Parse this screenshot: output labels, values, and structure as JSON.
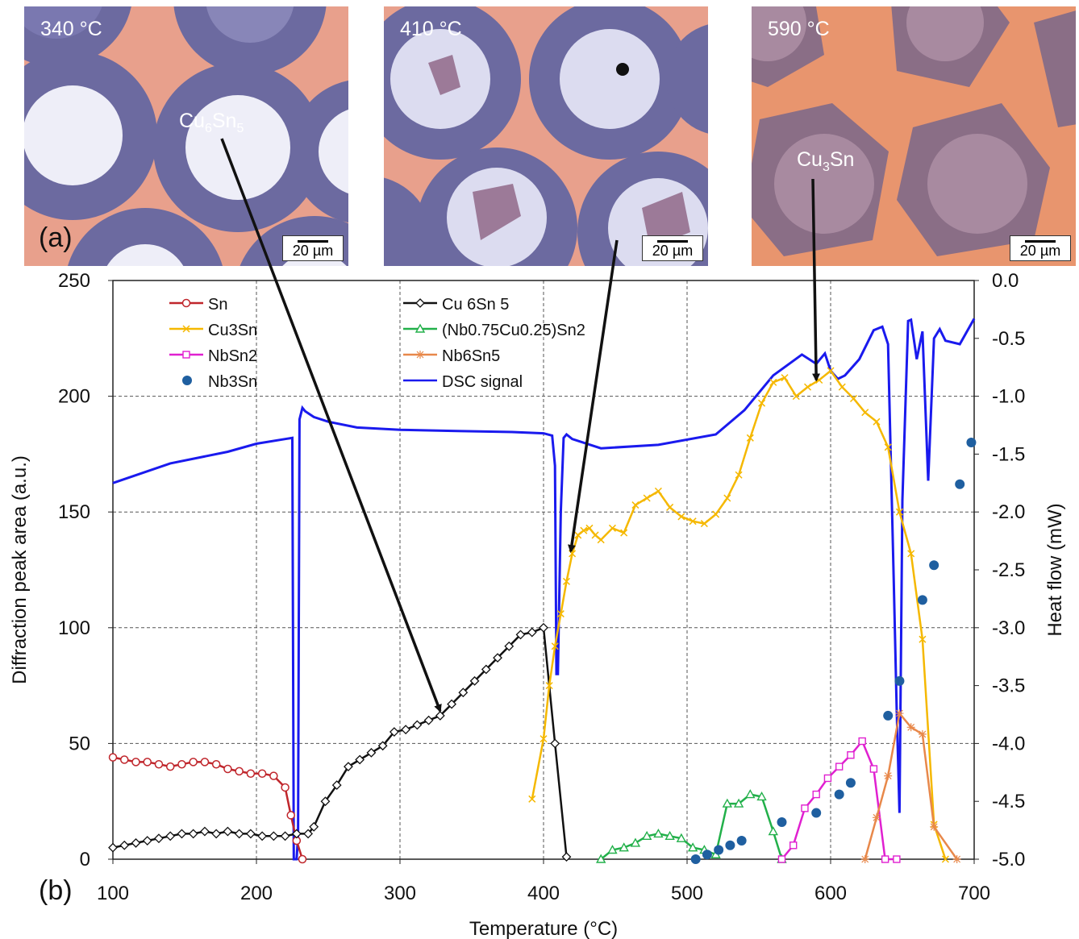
{
  "micrographs": [
    {
      "temp": "340 °C",
      "phase_base": "Cu",
      "phase_sub1": "6",
      "phase_mid": "Sn",
      "phase_sub2": "5",
      "scale": "20 µm"
    },
    {
      "temp": "410 °C",
      "scale": "20 µm"
    },
    {
      "temp": "590 °C",
      "phase_base": "Cu",
      "phase_sub1": "3",
      "phase_mid": "Sn",
      "phase_sub2": "",
      "scale": "20 µm"
    }
  ],
  "panel_labels": {
    "a": "(a)",
    "b": "(b)"
  },
  "chart_data": {
    "type": "line",
    "xlabel": "Temperature (°C)",
    "ylabel": "Diffraction peak area (a.u.)",
    "y2label": "Heat flow (mW)",
    "xlim": [
      100,
      700
    ],
    "ylim": [
      0,
      250
    ],
    "y2lim": [
      -5.0,
      0.0
    ],
    "x_ticks": [
      "100",
      "200",
      "300",
      "400",
      "500",
      "600",
      "700"
    ],
    "y_ticks": [
      "0",
      "50",
      "100",
      "150",
      "200",
      "250"
    ],
    "y2_ticks": [
      "-5.0",
      "-4.5",
      "-4.0",
      "-3.5",
      "-3.0",
      "-2.5",
      "-2.0",
      "-1.5",
      "-1.0",
      "-0.5",
      "0.0"
    ],
    "grid": true,
    "legend_position": "top-left",
    "series": [
      {
        "name": "Sn",
        "color": "#c0262c",
        "marker": "circle",
        "x": [
          100,
          108,
          116,
          124,
          132,
          140,
          148,
          156,
          164,
          172,
          180,
          188,
          196,
          204,
          212,
          220,
          224,
          228,
          232
        ],
        "y": [
          44,
          43,
          42,
          42,
          41,
          40,
          41,
          42,
          42,
          41,
          39,
          38,
          37,
          37,
          36,
          31,
          19,
          8,
          0
        ]
      },
      {
        "name": "Cu 6Sn 5",
        "color": "#111111",
        "marker": "diamond",
        "x": [
          100,
          108,
          116,
          124,
          132,
          140,
          148,
          156,
          164,
          172,
          180,
          188,
          196,
          204,
          212,
          220,
          228,
          236,
          240,
          248,
          256,
          264,
          272,
          280,
          288,
          296,
          304,
          312,
          320,
          328,
          336,
          344,
          352,
          360,
          368,
          376,
          384,
          392,
          400,
          408,
          416
        ],
        "y": [
          5,
          6,
          7,
          8,
          9,
          10,
          11,
          11,
          12,
          11,
          12,
          11,
          11,
          10,
          10,
          10,
          11,
          11,
          14,
          25,
          32,
          40,
          43,
          46,
          49,
          55,
          56,
          58,
          60,
          62,
          67,
          72,
          77,
          82,
          87,
          92,
          97,
          98,
          100,
          50,
          1
        ]
      },
      {
        "name": "Cu3Sn",
        "color": "#f5b800",
        "marker": "x",
        "x": [
          392,
          400,
          404,
          408,
          412,
          416,
          420,
          424,
          428,
          432,
          436,
          440,
          448,
          456,
          464,
          472,
          480,
          488,
          496,
          504,
          512,
          520,
          528,
          536,
          544,
          552,
          560,
          568,
          576,
          584,
          592,
          600,
          608,
          616,
          624,
          632,
          640,
          648,
          656,
          664,
          672,
          680
        ],
        "y": [
          26,
          52,
          75,
          92,
          106,
          120,
          132,
          140,
          142,
          143,
          140,
          138,
          143,
          141,
          153,
          156,
          159,
          152,
          148,
          146,
          145,
          149,
          156,
          166,
          182,
          197,
          206,
          208,
          200,
          204,
          207,
          211,
          204,
          199,
          193,
          189,
          178,
          150,
          132,
          95,
          15,
          0
        ]
      },
      {
        "name": "(Nb0.75Cu0.25)Sn2",
        "color": "#22b04a",
        "marker": "triangle",
        "x": [
          440,
          448,
          456,
          464,
          472,
          480,
          488,
          496,
          504,
          512,
          520,
          528,
          536,
          544,
          552,
          560,
          566
        ],
        "y": [
          0,
          4,
          5,
          7,
          10,
          11,
          10,
          9,
          5,
          4,
          2,
          24,
          24,
          28,
          27,
          12,
          0
        ]
      },
      {
        "name": "NbSn2",
        "color": "#e020d0",
        "marker": "square",
        "x": [
          566,
          574,
          582,
          590,
          598,
          606,
          614,
          622,
          630,
          638,
          646
        ],
        "y": [
          0,
          6,
          22,
          28,
          35,
          40,
          45,
          51,
          39,
          0,
          0
        ]
      },
      {
        "name": "Nb6Sn5",
        "color": "#e8884a",
        "marker": "star",
        "x": [
          624,
          632,
          640,
          648,
          656,
          664,
          672,
          688
        ],
        "y": [
          0,
          18,
          36,
          63,
          57,
          54,
          14,
          0
        ]
      },
      {
        "name": "Nb3Sn",
        "color": "#1f5fa0",
        "marker": "dot",
        "x": [
          506,
          514,
          522,
          530,
          538,
          566,
          590,
          606,
          614,
          640,
          648,
          664,
          672,
          690,
          698
        ],
        "y": [
          0,
          2,
          4,
          6,
          8,
          16,
          20,
          28,
          33,
          62,
          77,
          112,
          127,
          162,
          180
        ]
      },
      {
        "name": "DSC signal",
        "color": "#1a1aee",
        "marker": "none",
        "axis": "y2",
        "x": [
          100,
          140,
          180,
          200,
          220,
          225,
          226,
          228,
          229,
          230,
          232,
          234,
          240,
          250,
          270,
          300,
          340,
          380,
          400,
          406,
          408,
          409,
          410,
          412,
          414,
          416,
          420,
          440,
          480,
          520,
          540,
          560,
          580,
          590,
          596,
          600,
          605,
          610,
          620,
          630,
          636,
          640,
          644,
          646,
          648,
          650,
          654,
          656,
          660,
          664,
          668,
          672,
          676,
          680,
          690,
          700
        ],
        "y": [
          -1.75,
          -1.58,
          -1.48,
          -1.41,
          -1.37,
          -1.36,
          -5.0,
          -5.0,
          -4.8,
          -1.2,
          -1.1,
          -1.13,
          -1.18,
          -1.22,
          -1.27,
          -1.29,
          -1.3,
          -1.31,
          -1.32,
          -1.34,
          -1.6,
          -3.4,
          -3.4,
          -2.0,
          -1.36,
          -1.33,
          -1.37,
          -1.45,
          -1.42,
          -1.33,
          -1.12,
          -0.82,
          -0.64,
          -0.72,
          -0.63,
          -0.78,
          -0.85,
          -0.82,
          -0.68,
          -0.43,
          -0.4,
          -0.55,
          -2.6,
          -3.7,
          -4.6,
          -1.9,
          -0.35,
          -0.34,
          -0.68,
          -0.44,
          -1.73,
          -0.5,
          -0.42,
          -0.52,
          -0.55,
          -0.33
        ]
      }
    ]
  }
}
